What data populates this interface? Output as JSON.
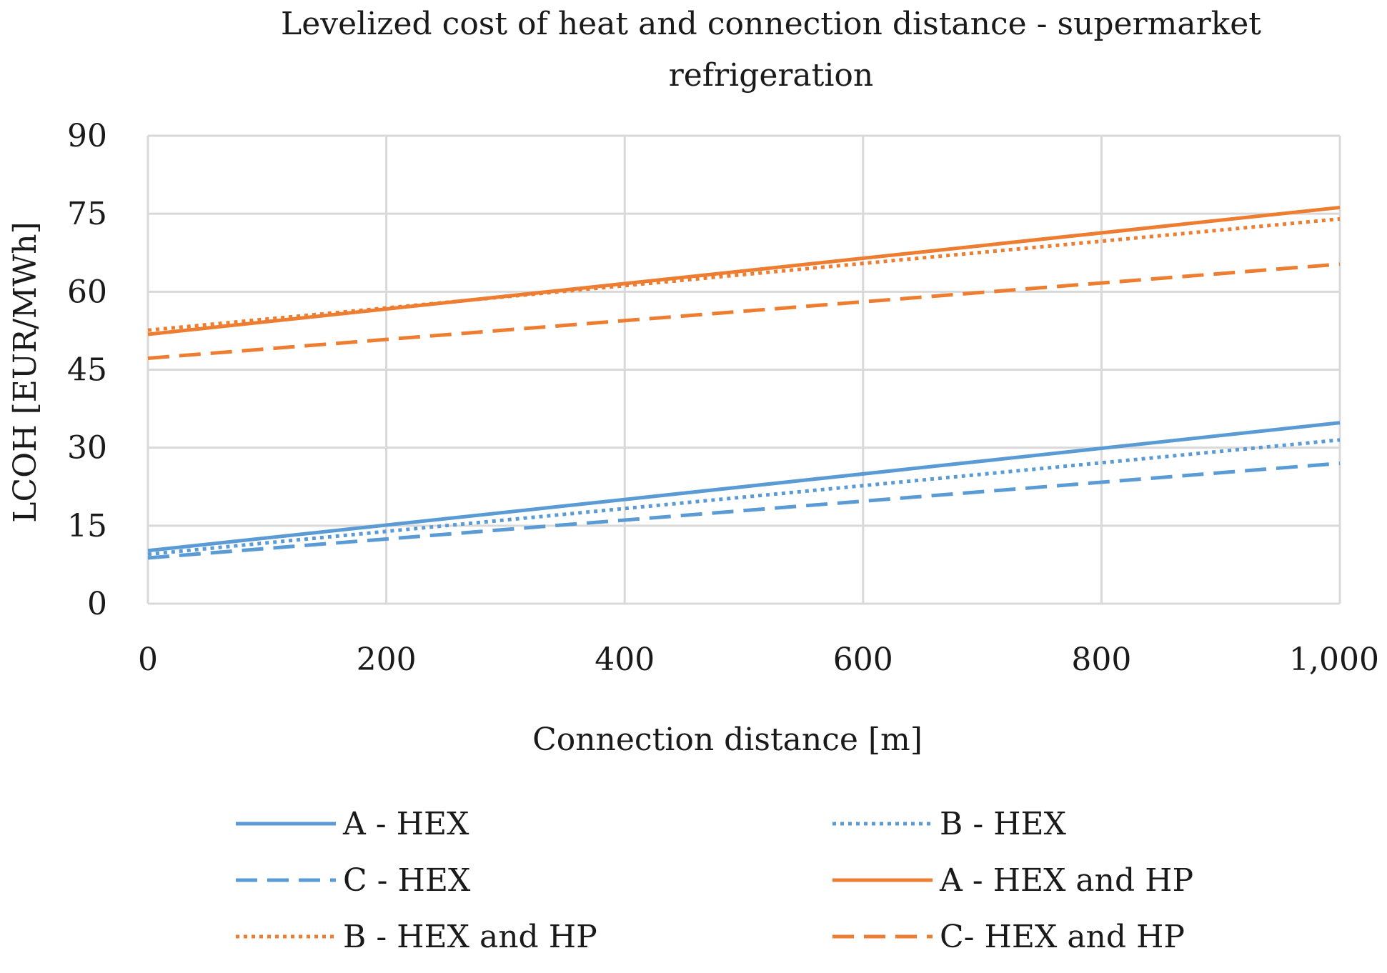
{
  "chart_data": {
    "type": "line",
    "title_lines": [
      "Levelized cost of heat and connection distance - supermarket",
      "refrigeration"
    ],
    "xlabel": "Connection distance [m]",
    "ylabel": "LCOH [EUR/MWh]",
    "xlim": [
      0,
      1000
    ],
    "ylim": [
      0,
      90
    ],
    "x_ticks": [
      0,
      200,
      400,
      600,
      800,
      1000
    ],
    "x_tick_labels": [
      "0",
      "200",
      "400",
      "600",
      "800",
      "1,000"
    ],
    "y_ticks": [
      0,
      15,
      30,
      45,
      60,
      75,
      90
    ],
    "y_tick_labels": [
      "0",
      "15",
      "30",
      "45",
      "60",
      "75",
      "90"
    ],
    "grid": true,
    "legend_position": "bottom",
    "colors": {
      "hex": "#5b9bd5",
      "hex_and_hp": "#ed7d31",
      "grid": "#d9d9d9"
    },
    "series": [
      {
        "name": "A - HEX",
        "color": "#5b9bd5",
        "style": "solid",
        "x": [
          0,
          1000
        ],
        "y": [
          10.2,
          34.8
        ]
      },
      {
        "name": "B - HEX",
        "color": "#5b9bd5",
        "style": "dotted",
        "x": [
          0,
          1000
        ],
        "y": [
          9.5,
          31.5
        ]
      },
      {
        "name": "C - HEX",
        "color": "#5b9bd5",
        "style": "dashed",
        "x": [
          0,
          1000
        ],
        "y": [
          8.8,
          27.0
        ]
      },
      {
        "name": "A - HEX and HP",
        "color": "#ed7d31",
        "style": "solid",
        "x": [
          0,
          1000
        ],
        "y": [
          51.8,
          76.2
        ]
      },
      {
        "name": "B - HEX and HP",
        "color": "#ed7d31",
        "style": "dotted",
        "x": [
          0,
          1000
        ],
        "y": [
          52.6,
          74.0
        ]
      },
      {
        "name": "C- HEX and HP",
        "color": "#ed7d31",
        "style": "dashed",
        "x": [
          0,
          1000
        ],
        "y": [
          47.2,
          65.3
        ]
      }
    ]
  }
}
